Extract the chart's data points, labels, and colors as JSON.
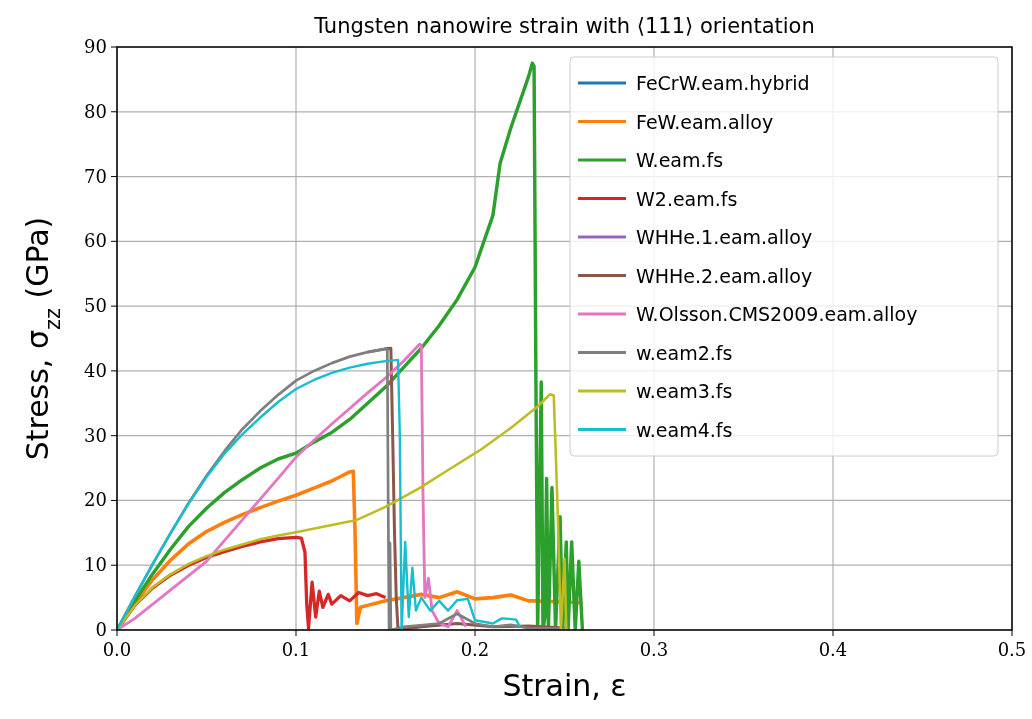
{
  "chart_data": {
    "type": "line",
    "title": "Tungsten nanowire strain with ⟨111⟩ orientation",
    "xlabel": "Strain, ε",
    "ylabel": "Stress, σ$_{zz}$ (GPa)",
    "xlim": [
      0,
      0.5
    ],
    "ylim": [
      0,
      90
    ],
    "xticks": [
      {
        "value": 0,
        "label": "0.0"
      },
      0.1,
      0.2,
      0.3,
      0.4,
      0.5
    ],
    "yticks": [
      0,
      10,
      20,
      30,
      40,
      50,
      60,
      70,
      80,
      90
    ],
    "grid": true,
    "legend": "top right",
    "line_style": "solid",
    "series": [
      {
        "name": "FeCrW.eam.hybrid",
        "color": "#1f77b4"
      },
      {
        "name": "FeW.eam.alloy",
        "color": "#ff7f0e",
        "x": [
          0,
          0.01,
          0.02,
          0.03,
          0.04,
          0.05,
          0.06,
          0.07,
          0.08,
          0.09,
          0.1,
          0.11,
          0.12,
          0.13,
          0.132,
          0.133,
          0.134,
          0.136,
          0.14,
          0.15,
          0.16,
          0.17,
          0.18,
          0.19,
          0.2,
          0.21,
          0.22,
          0.23,
          0.233,
          0.26
        ],
        "values": [
          0,
          4.2,
          7.8,
          10.8,
          13.3,
          15.2,
          16.6,
          17.8,
          18.9,
          19.9,
          20.8,
          21.9,
          23,
          24.4,
          24.5,
          15,
          1,
          3.5,
          3.8,
          4.5,
          5,
          5.5,
          5,
          5.9,
          4.8,
          5,
          5.4,
          4.5,
          4.5,
          4.2
        ]
      },
      {
        "name": "W.eam.fs",
        "color": "#2ca02c",
        "x": [
          0,
          0.01,
          0.02,
          0.03,
          0.04,
          0.05,
          0.06,
          0.07,
          0.08,
          0.09,
          0.1,
          0.11,
          0.12,
          0.13,
          0.14,
          0.15,
          0.16,
          0.17,
          0.18,
          0.19,
          0.2,
          0.21,
          0.214,
          0.22,
          0.23,
          0.232,
          0.233,
          0.234,
          0.235,
          0.237,
          0.238,
          0.239,
          0.24,
          0.241,
          0.243,
          0.245,
          0.2475,
          0.249,
          0.251,
          0.252,
          0.254,
          0.256,
          0.258,
          0.26
        ],
        "values": [
          0,
          4.5,
          8.7,
          12.5,
          16,
          18.8,
          21.2,
          23.2,
          25,
          26.4,
          27.3,
          29,
          30.5,
          32.5,
          35,
          37.5,
          40.5,
          43.5,
          47,
          51,
          56,
          64,
          72,
          77.5,
          85.5,
          87.5,
          87,
          40,
          0,
          38.3,
          0,
          2,
          23.4,
          0,
          22,
          0,
          17.5,
          0,
          13.6,
          0,
          13.6,
          0,
          10.6,
          0
        ]
      },
      {
        "name": "W2.eam.fs",
        "color": "#d62728",
        "x": [
          0,
          0.01,
          0.02,
          0.03,
          0.04,
          0.05,
          0.06,
          0.07,
          0.08,
          0.09,
          0.1,
          0.103,
          0.105,
          0.106,
          0.107,
          0.109,
          0.111,
          0.113,
          0.115,
          0.118,
          0.12,
          0.125,
          0.13,
          0.135,
          0.14,
          0.145,
          0.15
        ],
        "values": [
          0,
          3.8,
          6.5,
          8.5,
          10,
          11.2,
          12.1,
          12.9,
          13.6,
          14.1,
          14.3,
          14.2,
          12,
          4,
          0.3,
          7.4,
          2,
          6,
          3.5,
          5.5,
          4,
          5.3,
          4.5,
          5.8,
          5.3,
          5.6,
          5
        ]
      },
      {
        "name": "WHHe.1.eam.alloy",
        "color": "#9467bd"
      },
      {
        "name": "WHHe.2.eam.alloy",
        "color": "#8c564b",
        "x": [
          0.14,
          0.15,
          0.153,
          0.154,
          0.155,
          0.156,
          0.157,
          0.17,
          0.19,
          0.21,
          0.23,
          0.25
        ],
        "values": [
          42.9,
          43.4,
          43.5,
          30,
          15.4,
          5,
          0,
          0.5,
          1,
          0.5,
          0.6,
          0.3
        ]
      },
      {
        "name": "W.Olsson.CMS2009.eam.alloy",
        "color": "#e377c2",
        "x": [
          0,
          0.01,
          0.02,
          0.03,
          0.04,
          0.05,
          0.06,
          0.07,
          0.08,
          0.09,
          0.1,
          0.11,
          0.12,
          0.13,
          0.14,
          0.15,
          0.16,
          0.169,
          0.17,
          0.171,
          0.172,
          0.174,
          0.176,
          0.18,
          0.185,
          0.19,
          0.195
        ],
        "values": [
          0,
          1.8,
          4,
          6.2,
          8.4,
          10.6,
          13.8,
          17,
          20.2,
          23.4,
          26.7,
          29.3,
          31.8,
          34.2,
          36.6,
          38.9,
          41.5,
          44.1,
          44,
          20,
          5,
          8,
          3,
          1,
          0.5,
          3,
          0.5
        ]
      },
      {
        "name": "w.eam2.fs",
        "color": "#7f7f7f",
        "x": [
          0,
          0.01,
          0.02,
          0.03,
          0.04,
          0.05,
          0.06,
          0.07,
          0.08,
          0.09,
          0.1,
          0.11,
          0.12,
          0.13,
          0.14,
          0.15,
          0.151,
          0.1515,
          0.152,
          0.1525,
          0.153,
          0.16,
          0.18,
          0.19,
          0.2,
          0.21,
          0.22,
          0.23,
          0.25
        ],
        "values": [
          0,
          5.2,
          10.2,
          15,
          19.6,
          23.8,
          27.6,
          31,
          33.8,
          36.3,
          38.5,
          40,
          41.2,
          42.2,
          42.9,
          43.4,
          43.3,
          20,
          0,
          13.4,
          0,
          0.5,
          1,
          2.5,
          1,
          0.5,
          0.8,
          0.3,
          0.2
        ]
      },
      {
        "name": "w.eam3.fs",
        "color": "#bcbd22",
        "x": [
          0,
          0.01,
          0.02,
          0.03,
          0.04,
          0.05,
          0.06,
          0.07,
          0.08,
          0.09,
          0.1,
          0.12,
          0.134,
          0.15,
          0.169,
          0.185,
          0.203,
          0.22,
          0.235,
          0.242,
          0.244,
          0.246,
          0.247,
          0.248,
          0.25,
          0.251
        ],
        "values": [
          0,
          3.8,
          6.6,
          8.6,
          10.2,
          11.4,
          12.4,
          13.2,
          14,
          14.6,
          15.1,
          16.2,
          17,
          19,
          21.9,
          24.7,
          27.8,
          31.2,
          34.5,
          36.4,
          36.2,
          20,
          10,
          0,
          11,
          0
        ]
      },
      {
        "name": "w.eam4.fs",
        "color": "#17becf",
        "x": [
          0,
          0.01,
          0.02,
          0.03,
          0.04,
          0.05,
          0.06,
          0.07,
          0.08,
          0.09,
          0.1,
          0.11,
          0.12,
          0.13,
          0.14,
          0.15,
          0.157,
          0.158,
          0.159,
          0.161,
          0.163,
          0.165,
          0.167,
          0.17,
          0.175,
          0.18,
          0.185,
          0.19,
          0.196,
          0.2,
          0.21,
          0.215,
          0.223,
          0.225
        ],
        "values": [
          0,
          5.2,
          10.2,
          15,
          19.5,
          23.6,
          27.2,
          30.2,
          32.8,
          35.2,
          37.2,
          38.6,
          39.7,
          40.5,
          41.1,
          41.5,
          41.7,
          30,
          0,
          13.6,
          2,
          9.6,
          3,
          5,
          3,
          4.5,
          3,
          4.6,
          4.8,
          1.5,
          1,
          1.8,
          1.6,
          0.5
        ]
      }
    ]
  }
}
